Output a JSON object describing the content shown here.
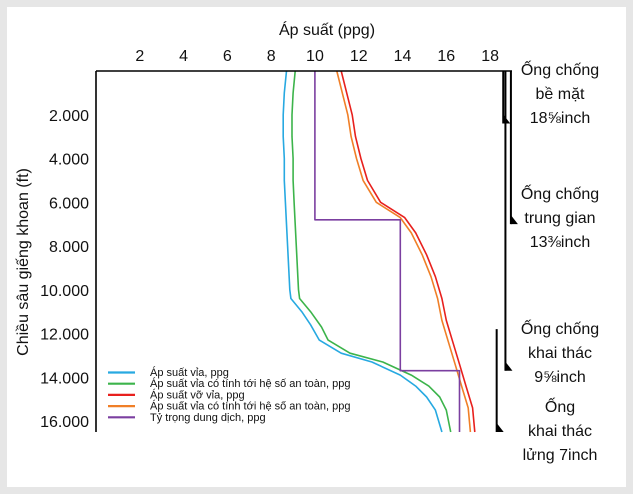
{
  "chart_data": {
    "type": "line",
    "title": "",
    "xlabel": "Áp suất (ppg)",
    "ylabel": "Chiều sâu giếng khoan (ft)",
    "xlim": [
      0,
      19
    ],
    "ylim": [
      16500,
      0
    ],
    "x_ticks": [
      2,
      4,
      6,
      8,
      10,
      12,
      14,
      16,
      18
    ],
    "x_tick_labels": [
      "2",
      "4",
      "6",
      "8",
      "10",
      "12",
      "14",
      "16",
      "18"
    ],
    "y_ticks": [
      2000,
      4000,
      6000,
      8000,
      10000,
      12000,
      14000,
      16000
    ],
    "y_tick_labels": [
      "2.000",
      "4.000",
      "6.000",
      "8.000",
      "10.000",
      "12.000",
      "14.000",
      "16.000"
    ],
    "legend_position": "bottom-left",
    "series": [
      {
        "name": "Áp suất vỉa, ppg",
        "color": "#27a9e1",
        "points": [
          [
            8.7,
            0
          ],
          [
            8.6,
            1000
          ],
          [
            8.55,
            2000
          ],
          [
            8.55,
            3000
          ],
          [
            8.6,
            4000
          ],
          [
            8.6,
            5000
          ],
          [
            8.65,
            6000
          ],
          [
            8.7,
            7000
          ],
          [
            8.75,
            8000
          ],
          [
            8.8,
            9000
          ],
          [
            8.85,
            10000
          ],
          [
            8.9,
            10400
          ],
          [
            9.4,
            11000
          ],
          [
            9.8,
            11600
          ],
          [
            10.2,
            12300
          ],
          [
            11.2,
            12900
          ],
          [
            12.6,
            13300
          ],
          [
            13.9,
            13900
          ],
          [
            14.6,
            14400
          ],
          [
            15.1,
            14900
          ],
          [
            15.5,
            15500
          ],
          [
            15.8,
            16500
          ]
        ]
      },
      {
        "name": "Áp suất vỉa có tính tới hệ số an toàn, ppg",
        "color": "#3cb44b",
        "points": [
          [
            9.1,
            0
          ],
          [
            9.0,
            1000
          ],
          [
            8.95,
            2000
          ],
          [
            8.95,
            3000
          ],
          [
            9.0,
            4000
          ],
          [
            9.0,
            5000
          ],
          [
            9.05,
            6000
          ],
          [
            9.1,
            7000
          ],
          [
            9.15,
            8000
          ],
          [
            9.2,
            9000
          ],
          [
            9.25,
            10000
          ],
          [
            9.3,
            10400
          ],
          [
            9.8,
            11000
          ],
          [
            10.3,
            11700
          ],
          [
            10.6,
            12300
          ],
          [
            11.6,
            12900
          ],
          [
            13.1,
            13300
          ],
          [
            14.4,
            13900
          ],
          [
            15.2,
            14400
          ],
          [
            15.7,
            14900
          ],
          [
            16.0,
            15500
          ],
          [
            16.2,
            16500
          ]
        ]
      },
      {
        "name": "Áp suất vỡ vỉa, ppg",
        "color": "#e8201d",
        "points": [
          [
            11.2,
            0
          ],
          [
            11.45,
            1000
          ],
          [
            11.7,
            2000
          ],
          [
            11.85,
            3000
          ],
          [
            12.1,
            4000
          ],
          [
            12.4,
            5000
          ],
          [
            13.0,
            6000
          ],
          [
            14.1,
            6700
          ],
          [
            14.6,
            7400
          ],
          [
            15.1,
            8400
          ],
          [
            15.5,
            9400
          ],
          [
            15.8,
            10400
          ],
          [
            16.0,
            11400
          ],
          [
            16.3,
            12400
          ],
          [
            16.6,
            13400
          ],
          [
            16.9,
            14400
          ],
          [
            17.2,
            15400
          ],
          [
            17.3,
            16500
          ]
        ]
      },
      {
        "name": "Áp suất vỉa có tính tới hệ số an toàn, ppg",
        "color": "#f07f27",
        "points": [
          [
            11.0,
            0
          ],
          [
            11.25,
            1000
          ],
          [
            11.5,
            2000
          ],
          [
            11.65,
            3000
          ],
          [
            11.9,
            4000
          ],
          [
            12.2,
            5000
          ],
          [
            12.8,
            6000
          ],
          [
            13.9,
            6700
          ],
          [
            14.4,
            7400
          ],
          [
            14.9,
            8400
          ],
          [
            15.3,
            9400
          ],
          [
            15.6,
            10400
          ],
          [
            15.8,
            11400
          ],
          [
            16.1,
            12400
          ],
          [
            16.4,
            13400
          ],
          [
            16.7,
            14400
          ],
          [
            17.0,
            15400
          ],
          [
            17.1,
            16500
          ]
        ]
      },
      {
        "name": "Tỷ trọng dung dịch, ppg",
        "color": "#7b3fa0",
        "points": [
          [
            10.0,
            0
          ],
          [
            10.0,
            6800
          ],
          [
            13.9,
            6800
          ],
          [
            13.9,
            13700
          ],
          [
            16.6,
            13700
          ],
          [
            16.6,
            16500
          ]
        ]
      }
    ],
    "casings": [
      {
        "label_lines": [
          "Ống chống",
          "bề mặt",
          "18⅝inch"
        ],
        "x": 18.6,
        "depth": 2400
      },
      {
        "label_lines": [
          "Ống chống",
          "trung gian",
          "13⅜inch"
        ],
        "x": 18.95,
        "depth": 7000
      },
      {
        "label_lines": [
          "Ống chống",
          "khai thác",
          "9⅝inch"
        ],
        "x": 18.7,
        "depth": 13700
      },
      {
        "label_lines": [
          "Ống",
          "khai thác",
          "lửng 7inch"
        ],
        "x": 18.3,
        "top": 11800,
        "depth": 16500
      }
    ]
  }
}
